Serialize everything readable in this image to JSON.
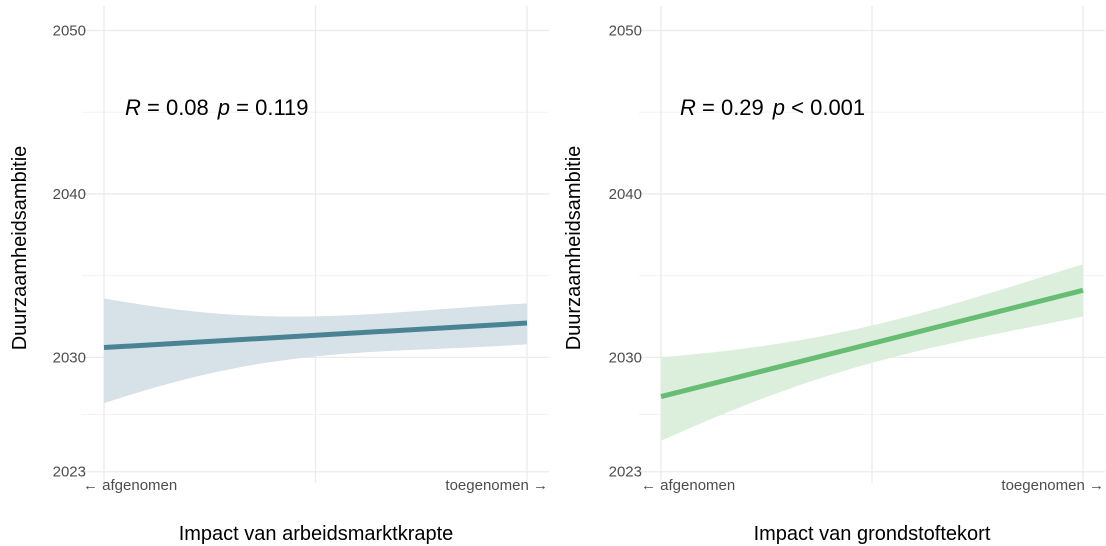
{
  "chart_data": [
    {
      "type": "line",
      "xlabel": "Impact van arbeidsmarktkrapte",
      "ylabel": "Duurzaamheidsambitie",
      "x_tick_labels": [
        "← afgenomen",
        "toegenomen →"
      ],
      "x": [
        0,
        1
      ],
      "xlim": [
        0,
        1
      ],
      "y_ticks": [
        2023,
        2030,
        2040,
        2050
      ],
      "y_tick_labels": [
        "2023",
        "2030",
        "2040",
        "2050"
      ],
      "ylim": [
        2022.8,
        2051.5
      ],
      "annotation": {
        "r_label": "R",
        "r_value": " = 0.08",
        "p_label": "p",
        "p_value": " = 0.119"
      },
      "grid": true,
      "series": [
        {
          "values": [
            2030.6,
            2032.1
          ],
          "ci_low": [
            2027.2,
            2030.8
          ],
          "ci_high": [
            2033.6,
            2033.3
          ],
          "color": "#4a8494",
          "ci_color": "#d6e1e8"
        }
      ]
    },
    {
      "type": "line",
      "xlabel": "Impact van grondstoftekort",
      "ylabel": "Duurzaamheidsambitie",
      "x_tick_labels": [
        "← afgenomen",
        "toegenomen →"
      ],
      "x": [
        0,
        1
      ],
      "xlim": [
        0,
        1
      ],
      "y_ticks": [
        2023,
        2030,
        2040,
        2050
      ],
      "y_tick_labels": [
        "2023",
        "2030",
        "2040",
        "2050"
      ],
      "ylim": [
        2022.8,
        2051.5
      ],
      "annotation": {
        "r_label": "R",
        "r_value": " = 0.29",
        "p_label": "p",
        "p_value": " <  0.001"
      },
      "grid": true,
      "series": [
        {
          "values": [
            2027.6,
            2034.1
          ],
          "ci_low": [
            2024.9,
            2032.5
          ],
          "ci_high": [
            2030.0,
            2035.7
          ],
          "color": "#66bd73",
          "ci_color": "#dcefdd"
        }
      ]
    }
  ]
}
